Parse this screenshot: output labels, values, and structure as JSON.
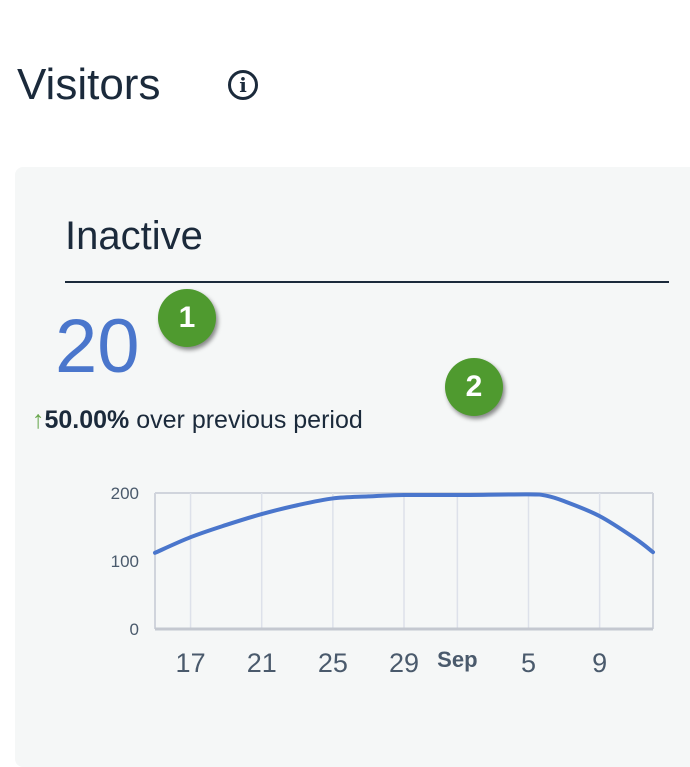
{
  "header": {
    "title": "Visitors",
    "info_icon": "info-circle-icon"
  },
  "card": {
    "title": "Inactive",
    "value": "20",
    "change_percent": "50.00%",
    "change_text": "over previous period",
    "change_direction_icon": "arrow-up-icon",
    "badges": [
      "1",
      "2"
    ]
  },
  "colors": {
    "accent": "#4a76cc",
    "positive": "#6aa84f",
    "badge": "#4f9a2f"
  },
  "chart_data": {
    "type": "line",
    "ylim": [
      0,
      200
    ],
    "y_ticks": [
      "0",
      "100",
      "200"
    ],
    "x_ticks": [
      "17",
      "21",
      "25",
      "29",
      "Sep",
      "5",
      "9"
    ],
    "x_tick_days": [
      17,
      21,
      25,
      29,
      32,
      36,
      40
    ],
    "xlim_days": [
      15,
      43
    ],
    "grid": true,
    "series": [
      {
        "points": [
          [
            15,
            112
          ],
          [
            17,
            135
          ],
          [
            19,
            153
          ],
          [
            21,
            169
          ],
          [
            23,
            182
          ],
          [
            25,
            192
          ],
          [
            27,
            195
          ],
          [
            29,
            197
          ],
          [
            32,
            197
          ],
          [
            36,
            198
          ],
          [
            37,
            196
          ],
          [
            38,
            188
          ],
          [
            40,
            166
          ],
          [
            42,
            133
          ],
          [
            43,
            113
          ]
        ]
      }
    ]
  }
}
